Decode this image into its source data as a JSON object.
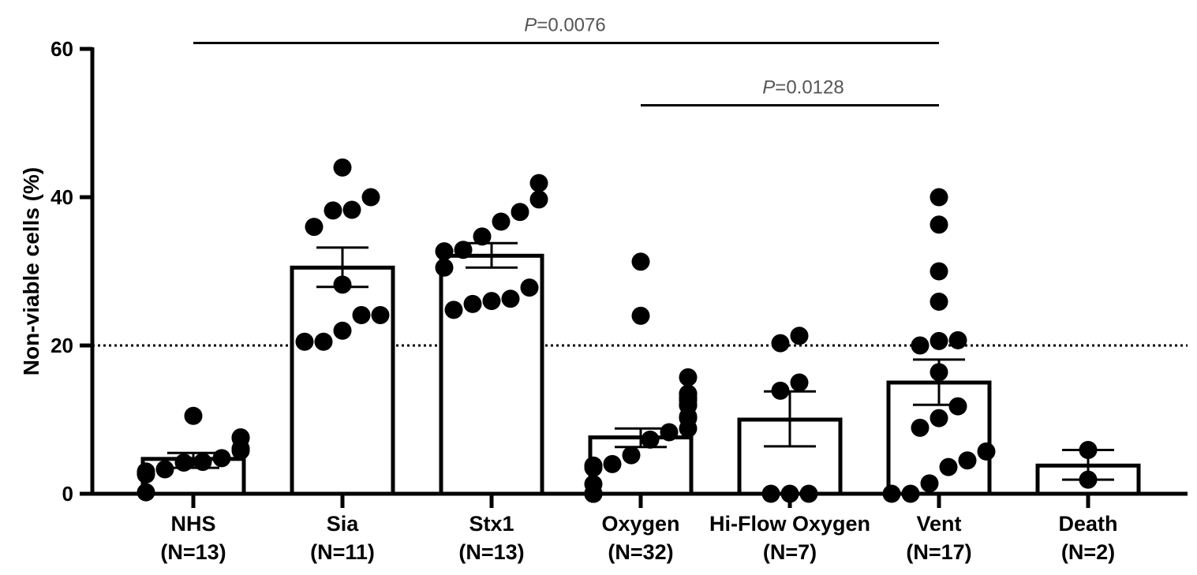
{
  "chart_data": {
    "type": "bar",
    "ylabel": "Non-viable cells (%)",
    "ylim": [
      0,
      60
    ],
    "yticks": [
      {
        "value": 0,
        "label": "0"
      },
      {
        "value": 20,
        "label": "20"
      },
      {
        "value": 40,
        "label": "40"
      },
      {
        "value": 60,
        "label": "60"
      }
    ],
    "reference_line": {
      "value": 20,
      "style": "dotted"
    },
    "categories": [
      {
        "name": "NHS",
        "n_label": "(N=13)",
        "mean": 4.7,
        "sem_low": 3.5,
        "sem_high": 5.5,
        "points": [
          0.2,
          2.6,
          2.8,
          3.0,
          3.3,
          4.2,
          4.3,
          4.8,
          5.8,
          6.1,
          7.5,
          7.6,
          10.5
        ]
      },
      {
        "name": "Sia",
        "n_label": "(N=11)",
        "mean": 30.5,
        "sem_low": 27.9,
        "sem_high": 33.2,
        "points": [
          20.5,
          20.5,
          22.0,
          24.1,
          24.1,
          28.2,
          36.0,
          38.2,
          38.3,
          40.0,
          44.0
        ]
      },
      {
        "name": "Stx1",
        "n_label": "(N=13)",
        "mean": 32.1,
        "sem_low": 30.5,
        "sem_high": 33.8,
        "points": [
          24.8,
          25.6,
          26.0,
          26.3,
          27.8,
          30.5,
          32.7,
          32.9,
          34.7,
          36.7,
          38.0,
          39.7,
          41.9
        ]
      },
      {
        "name": "Oxygen",
        "n_label": "(N=32)",
        "mean": 7.6,
        "sem_low": 6.3,
        "sem_high": 8.8,
        "points": [
          0,
          0,
          0,
          0,
          0,
          0,
          0,
          0,
          0,
          0,
          1.3,
          3.5,
          3.8,
          5.2,
          7.3,
          8.3,
          8.8,
          10.2,
          10.4,
          11.9,
          12.0,
          12.0,
          12.6,
          12.7,
          12.8,
          13.0,
          13.5,
          13.5,
          15.7,
          24.0,
          31.3,
          4.0
        ]
      },
      {
        "name": "Hi-Flow Oxygen",
        "n_label": "(N=7)",
        "mean": 10.0,
        "sem_low": 6.4,
        "sem_high": 13.8,
        "points": [
          0,
          0,
          0,
          13.9,
          15.0,
          20.3,
          21.3
        ]
      },
      {
        "name": "Vent",
        "n_label": "(N=17)",
        "mean": 15.0,
        "sem_low": 12.0,
        "sem_high": 18.1,
        "points": [
          0,
          0,
          1.4,
          3.6,
          4.5,
          5.7,
          8.9,
          10.2,
          11.8,
          16.4,
          20.0,
          20.7,
          20.6,
          25.9,
          30.0,
          36.3,
          40.0
        ]
      },
      {
        "name": "Death",
        "n_label": "(N=2)",
        "mean": 3.8,
        "sem_low": 1.9,
        "sem_high": 5.9,
        "points": [
          1.9,
          5.9
        ]
      }
    ],
    "significance": [
      {
        "from": "NHS",
        "to": "Vent",
        "value": 60.8,
        "p_prefix": "P",
        "p_text": "=0.0076"
      },
      {
        "from": "Oxygen",
        "to": "Vent",
        "value": 52.4,
        "p_prefix": "P",
        "p_text": "=0.0128"
      }
    ]
  }
}
